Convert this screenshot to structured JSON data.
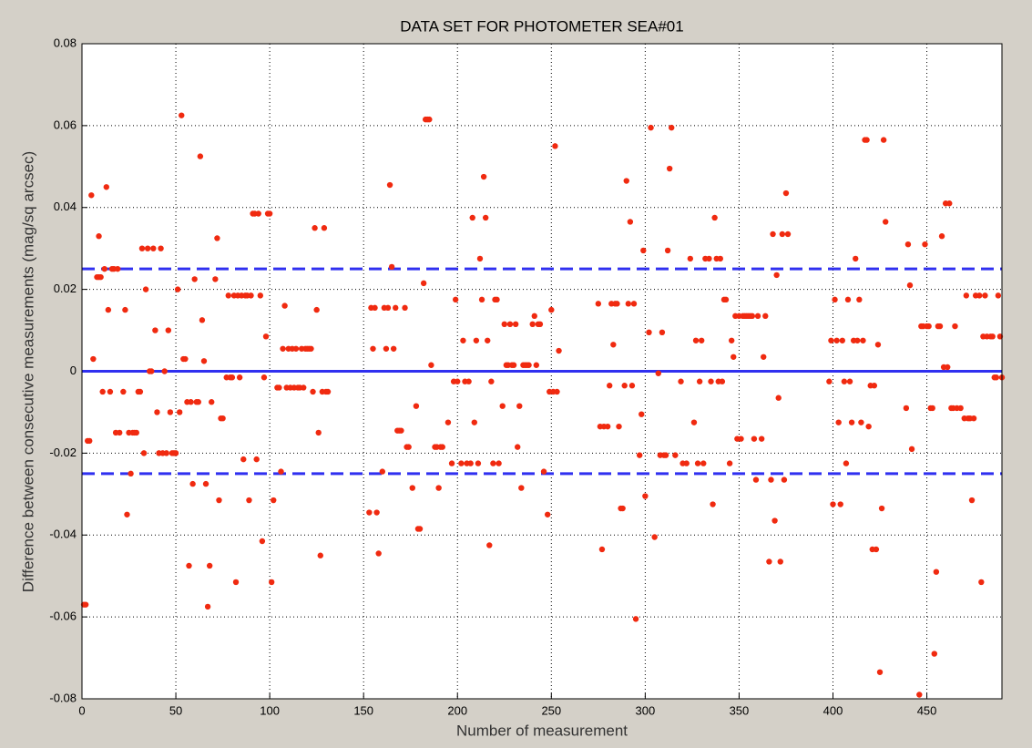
{
  "chart_data": {
    "type": "scatter",
    "title": "DATA SET FOR PHOTOMETER SEA#01",
    "xlabel": "Number of measurement",
    "ylabel": "Difference between consecutive measurements (mag/sq arcsec)",
    "xlim": [
      0,
      490
    ],
    "ylim": [
      -0.08,
      0.08
    ],
    "xticks": [
      0,
      50,
      100,
      150,
      200,
      250,
      300,
      350,
      400,
      450
    ],
    "yticks": [
      -0.08,
      -0.06,
      -0.04,
      -0.02,
      0,
      0.02,
      0.04,
      0.06,
      0.08
    ],
    "grid": true,
    "hlines": [
      {
        "value": 0.025,
        "dashed": true,
        "color": "#3030f0"
      },
      {
        "value": 0,
        "dashed": false,
        "color": "#3030f0"
      },
      {
        "value": -0.025,
        "dashed": true,
        "color": "#3030f0"
      }
    ],
    "series": [
      {
        "color": "#f02a10",
        "x": [
          1,
          2,
          3,
          4,
          5,
          6,
          8,
          9,
          10,
          9,
          11,
          12,
          13,
          14,
          15,
          16,
          17,
          18,
          19,
          20,
          22,
          23,
          24,
          25,
          26,
          27,
          28,
          29,
          30,
          31,
          32,
          33,
          34,
          35,
          36,
          37,
          38,
          39,
          40,
          41,
          42,
          43,
          44,
          45,
          46,
          47,
          48,
          49,
          50,
          51,
          52,
          53,
          54,
          55,
          56,
          57,
          58,
          59,
          60,
          61,
          62,
          63,
          64,
          65,
          66,
          67,
          68,
          69,
          71,
          72,
          73,
          74,
          75,
          77,
          78,
          79,
          80,
          81,
          82,
          83,
          84,
          85,
          86,
          87,
          88,
          89,
          90,
          91,
          92,
          93,
          94,
          95,
          96,
          97,
          98,
          99,
          100,
          101,
          102,
          104,
          105,
          106,
          107,
          108,
          109,
          110,
          111,
          112,
          113,
          114,
          115,
          116,
          117,
          118,
          119,
          120,
          121,
          122,
          123,
          124,
          125,
          126,
          127,
          128,
          129,
          130,
          131,
          153,
          154,
          155,
          156,
          157,
          158,
          160,
          161,
          162,
          163,
          164,
          165,
          166,
          167,
          168,
          169,
          170,
          172,
          173,
          174,
          176,
          178,
          179,
          180,
          182,
          183,
          184,
          185,
          186,
          188,
          189,
          190,
          191,
          192,
          195,
          197,
          198,
          199,
          200,
          202,
          203,
          204,
          205,
          206,
          207,
          208,
          209,
          210,
          211,
          212,
          213,
          214,
          215,
          216,
          217,
          218,
          219,
          220,
          221,
          222,
          224,
          225,
          226,
          227,
          228,
          229,
          230,
          231,
          232,
          233,
          234,
          235,
          236,
          237,
          238,
          240,
          241,
          242,
          243,
          244,
          246,
          248,
          249,
          250,
          251,
          252,
          253,
          254,
          275,
          276,
          277,
          278,
          280,
          281,
          282,
          283,
          284,
          285,
          286,
          287,
          288,
          289,
          290,
          291,
          292,
          293,
          294,
          295,
          297,
          298,
          299,
          300,
          302,
          303,
          305,
          307,
          308,
          309,
          310,
          311,
          312,
          313,
          314,
          316,
          319,
          320,
          322,
          324,
          326,
          327,
          328,
          329,
          330,
          331,
          332,
          334,
          335,
          336,
          337,
          338,
          339,
          340,
          341,
          342,
          343,
          345,
          346,
          347,
          348,
          349,
          350,
          351,
          352,
          353,
          354,
          355,
          356,
          357,
          358,
          359,
          360,
          362,
          363,
          364,
          366,
          367,
          368,
          369,
          370,
          371,
          372,
          373,
          374,
          375,
          376,
          398,
          399,
          400,
          401,
          402,
          403,
          404,
          405,
          406,
          407,
          408,
          409,
          410,
          411,
          412,
          413,
          414,
          415,
          416,
          417,
          418,
          419,
          420,
          421,
          422,
          423,
          424,
          425,
          426,
          427,
          428,
          439,
          440,
          441,
          442,
          446,
          447,
          448,
          449,
          450,
          451,
          452,
          453,
          454,
          455,
          456,
          457,
          458,
          459,
          460,
          461,
          462,
          463,
          464,
          465,
          466,
          468,
          470,
          471,
          472,
          473,
          474,
          475,
          476,
          478,
          479,
          480,
          481,
          482,
          484,
          485,
          486,
          487,
          488,
          489,
          490
        ],
        "values": [
          -0.057,
          -0.057,
          -0.017,
          -0.017,
          0.043,
          0.003,
          0.023,
          0.023,
          0.023,
          0.033,
          -0.005,
          0.025,
          0.045,
          0.015,
          -0.005,
          0.025,
          0.025,
          -0.015,
          0.025,
          -0.015,
          -0.005,
          0.015,
          -0.035,
          -0.015,
          -0.025,
          -0.015,
          -0.015,
          -0.015,
          -0.005,
          -0.005,
          0.03,
          -0.02,
          0.02,
          0.03,
          0,
          0,
          0.03,
          0.01,
          -0.01,
          -0.02,
          0.03,
          -0.02,
          0,
          -0.02,
          0.01,
          -0.01,
          -0.02,
          -0.02,
          -0.02,
          0.02,
          -0.01,
          0.0625,
          0.003,
          0.003,
          -0.0075,
          -0.0475,
          -0.0075,
          -0.0275,
          0.0225,
          -0.0075,
          -0.0075,
          0.0525,
          0.0125,
          0.0025,
          -0.0275,
          -0.0575,
          -0.0475,
          -0.0075,
          0.0225,
          0.0325,
          -0.0315,
          -0.0115,
          -0.0115,
          -0.0015,
          0.0185,
          -0.0015,
          -0.0015,
          0.0185,
          -0.0515,
          0.0185,
          -0.0015,
          0.0185,
          -0.0215,
          0.0185,
          0.0185,
          -0.0315,
          0.0185,
          0.0385,
          0.0385,
          -0.0215,
          0.0385,
          0.0185,
          -0.0415,
          -0.0015,
          0.0085,
          0.0385,
          0.0385,
          -0.0515,
          -0.0315,
          -0.004,
          -0.004,
          -0.0245,
          0.0055,
          0.016,
          -0.004,
          0.0055,
          -0.004,
          0.0055,
          -0.004,
          0.0055,
          -0.004,
          -0.004,
          0.0055,
          -0.004,
          0.0055,
          0.0055,
          0.0055,
          0.0055,
          -0.005,
          0.035,
          0.015,
          -0.015,
          -0.045,
          -0.005,
          0.035,
          -0.005,
          -0.005,
          -0.0345,
          0.0155,
          0.0055,
          0.0155,
          -0.0345,
          -0.0445,
          -0.0245,
          0.0155,
          0.0055,
          0.0155,
          0.0455,
          0.0255,
          0.0055,
          0.0155,
          -0.0145,
          -0.0145,
          -0.0145,
          0.0155,
          -0.0185,
          -0.0185,
          -0.0285,
          -0.0085,
          -0.0385,
          -0.0385,
          0.0215,
          0.0615,
          0.0615,
          0.0615,
          0.0015,
          -0.0185,
          -0.0185,
          -0.0285,
          -0.0185,
          -0.0185,
          -0.0125,
          -0.0225,
          -0.0025,
          0.0175,
          -0.0025,
          -0.0225,
          0.0075,
          -0.0025,
          -0.0225,
          -0.0025,
          -0.0225,
          0.0375,
          -0.0125,
          0.0075,
          -0.0225,
          0.0275,
          0.0175,
          0.0475,
          0.0375,
          0.0075,
          -0.0425,
          -0.0025,
          -0.0225,
          0.0175,
          0.0175,
          -0.0225,
          -0.0085,
          0.0115,
          0.0015,
          0.0015,
          0.0115,
          0.0015,
          0.0015,
          0.0115,
          -0.0185,
          -0.0085,
          -0.0285,
          0.0015,
          0.0015,
          0.0015,
          0.0015,
          0.0115,
          0.0135,
          0.0015,
          0.0115,
          0.0115,
          -0.0245,
          -0.035,
          -0.005,
          0.015,
          -0.005,
          0.055,
          -0.005,
          0.005,
          0.0165,
          -0.0135,
          -0.0435,
          -0.0135,
          -0.0135,
          -0.0035,
          0.0165,
          0.0065,
          0.0165,
          0.0165,
          -0.0135,
          -0.0335,
          -0.0335,
          -0.0035,
          0.0465,
          0.0165,
          0.0365,
          -0.0035,
          0.0165,
          -0.0605,
          -0.0205,
          -0.0105,
          0.0295,
          -0.0305,
          0.0095,
          0.0595,
          -0.0405,
          -0.0005,
          -0.0205,
          0.0095,
          -0.0205,
          -0.0205,
          0.0295,
          0.0495,
          0.0595,
          -0.0205,
          -0.0025,
          -0.0225,
          -0.0225,
          0.0275,
          -0.0125,
          0.0075,
          -0.0225,
          -0.0025,
          0.0075,
          -0.0225,
          0.0275,
          0.0275,
          -0.0025,
          -0.0325,
          0.0375,
          0.0275,
          -0.0025,
          0.0275,
          -0.0025,
          0.0175,
          0.0175,
          -0.0225,
          0.0075,
          0.0035,
          0.0135,
          -0.0165,
          0.0135,
          -0.0165,
          0.0135,
          0.0135,
          0.0135,
          0.0135,
          0.0135,
          0.0135,
          -0.0165,
          -0.0265,
          0.0135,
          -0.0165,
          0.0035,
          0.0135,
          -0.0465,
          -0.0265,
          0.0335,
          -0.0365,
          0.0235,
          -0.0065,
          -0.0465,
          0.0335,
          -0.0265,
          0.0435,
          0.0335,
          -0.0025,
          0.0075,
          -0.0325,
          0.0175,
          0.0075,
          -0.0125,
          -0.0325,
          0.0075,
          -0.0025,
          -0.0225,
          0.0175,
          -0.0025,
          -0.0125,
          0.0075,
          0.0275,
          0.0075,
          0.0175,
          -0.0125,
          0.0075,
          0.0565,
          0.0565,
          -0.0135,
          -0.0035,
          -0.0435,
          -0.0035,
          -0.0435,
          0.0065,
          -0.0735,
          -0.0335,
          0.0565,
          0.0365,
          -0.009,
          0.031,
          0.021,
          -0.019,
          -0.079,
          0.011,
          0.011,
          0.031,
          0.011,
          0.011,
          -0.009,
          -0.009,
          -0.069,
          -0.049,
          0.011,
          0.011,
          0.033,
          0.001,
          0.041,
          0.001,
          0.041,
          -0.009,
          -0.009,
          0.011,
          -0.009,
          -0.009,
          -0.0115,
          0.0185,
          -0.0115,
          -0.0115,
          -0.0315,
          -0.0115,
          0.0185,
          0.0185,
          -0.0515,
          0.0085,
          0.0185,
          0.0085,
          0.0085,
          0.0085,
          -0.0015,
          -0.0015,
          0.0185,
          0.0085,
          -0.0015
        ]
      }
    ]
  }
}
